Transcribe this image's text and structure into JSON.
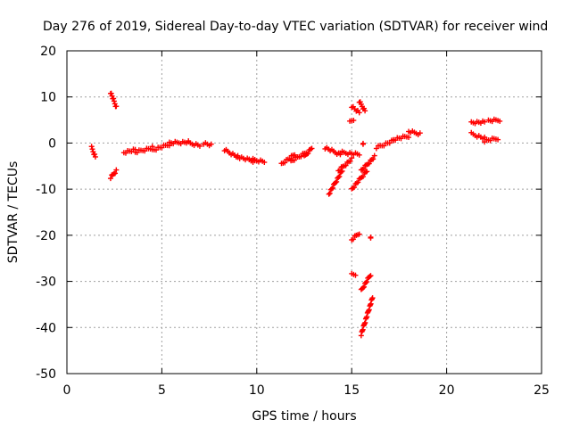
{
  "chart_data": {
    "type": "scatter",
    "title": "Day 276 of 2019, Sidereal Day-to-day VTEC variation (SDTVAR) for receiver wind",
    "xlabel": "GPS time / hours",
    "ylabel": "SDTVAR / TECUs",
    "xlim": [
      0,
      25
    ],
    "ylim": [
      -50,
      20
    ],
    "xticks": [
      0,
      5,
      10,
      15,
      20,
      25
    ],
    "yticks": [
      -50,
      -40,
      -30,
      -20,
      -10,
      0,
      10,
      20
    ],
    "grid": true,
    "marker": "+",
    "color": "#ff0000",
    "series": [
      {
        "name": "SDTVAR",
        "segments": [
          {
            "x": [
              1.3,
              1.5
            ],
            "y": [
              -1,
              -3
            ]
          },
          {
            "x": [
              2.3,
              2.6
            ],
            "y": [
              11,
              7.8
            ]
          },
          {
            "x": [
              2.3,
              2.6
            ],
            "y": [
              -7.5,
              -6
            ]
          },
          {
            "x": [
              3.0,
              3.6
            ],
            "y": [
              -2,
              -1.5
            ]
          },
          {
            "x": [
              3.6,
              4.5
            ],
            "y": [
              -2,
              -1
            ]
          },
          {
            "x": [
              4.5,
              5.4
            ],
            "y": [
              -1.5,
              -0.3
            ]
          },
          {
            "x": [
              5.4,
              6.4
            ],
            "y": [
              0,
              0.2
            ]
          },
          {
            "x": [
              6.4,
              7.0
            ],
            "y": [
              0,
              -0.5
            ]
          },
          {
            "x": [
              7.2,
              7.6
            ],
            "y": [
              0,
              -0.5
            ]
          },
          {
            "x": [
              8.3,
              9.0
            ],
            "y": [
              -1.5,
              -3
            ]
          },
          {
            "x": [
              9.0,
              9.9
            ],
            "y": [
              -3,
              -4
            ]
          },
          {
            "x": [
              9.6,
              10.4
            ],
            "y": [
              -3.5,
              -4
            ]
          },
          {
            "x": [
              11.3,
              12.0
            ],
            "y": [
              -4.5,
              -2.5
            ]
          },
          {
            "x": [
              11.8,
              12.6
            ],
            "y": [
              -4,
              -2
            ]
          },
          {
            "x": [
              12.5,
              12.9
            ],
            "y": [
              -3,
              -1
            ]
          },
          {
            "x": [
              13.6,
              14.4
            ],
            "y": [
              -1,
              -2.5
            ]
          },
          {
            "x": [
              14.4,
              15.4
            ],
            "y": [
              -2,
              -2.5
            ]
          },
          {
            "x": [
              13.8,
              14.5
            ],
            "y": [
              -11,
              -6
            ]
          },
          {
            "x": [
              14.3,
              15.0
            ],
            "y": [
              -6,
              -3.5
            ]
          },
          {
            "x": [
              15.0,
              15.8
            ],
            "y": [
              -10,
              -6
            ]
          },
          {
            "x": [
              15.5,
              16.2
            ],
            "y": [
              -6,
              -3
            ]
          },
          {
            "x": [
              14.9,
              15.1
            ],
            "y": [
              4.5,
              5
            ]
          },
          {
            "x": [
              15.0,
              15.4
            ],
            "y": [
              8,
              6.5
            ]
          },
          {
            "x": [
              15.4,
              15.7
            ],
            "y": [
              9,
              7
            ]
          },
          {
            "x": [
              15.6,
              15.6
            ],
            "y": [
              0,
              0
            ]
          },
          {
            "x": [
              15.0,
              15.4
            ],
            "y": [
              -21,
              -19.5
            ]
          },
          {
            "x": [
              16.0,
              16.0
            ],
            "y": [
              -20.5,
              -20.5
            ]
          },
          {
            "x": [
              15.0,
              15.2
            ],
            "y": [
              -28.5,
              -28.5
            ]
          },
          {
            "x": [
              15.5,
              16.0
            ],
            "y": [
              -32,
              -28.5
            ]
          },
          {
            "x": [
              15.5,
              16.1
            ],
            "y": [
              -41.5,
              -33.5
            ]
          },
          {
            "x": [
              16.3,
              17.2
            ],
            "y": [
              -1,
              0.5
            ]
          },
          {
            "x": [
              17.2,
              18.0
            ],
            "y": [
              0.8,
              1.5
            ]
          },
          {
            "x": [
              18.0,
              18.6
            ],
            "y": [
              2.5,
              2
            ]
          },
          {
            "x": [
              21.3,
              22.0
            ],
            "y": [
              4.5,
              4.5
            ]
          },
          {
            "x": [
              22.2,
              22.8
            ],
            "y": [
              4.8,
              5
            ]
          },
          {
            "x": [
              21.3,
              22.0
            ],
            "y": [
              2,
              1
            ]
          },
          {
            "x": [
              22.0,
              22.7
            ],
            "y": [
              0.5,
              1
            ]
          }
        ]
      }
    ]
  }
}
